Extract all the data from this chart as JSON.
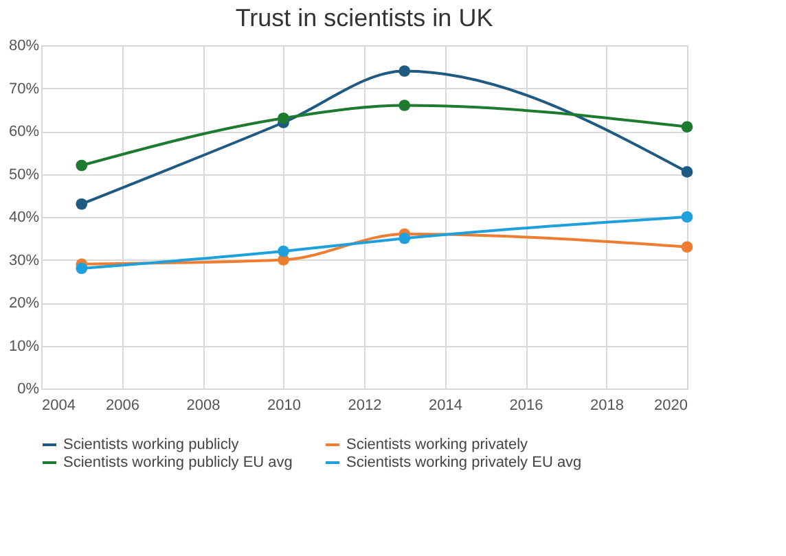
{
  "chart_data": {
    "type": "line",
    "title": "Trust in scientists in UK",
    "x": [
      2005,
      2010,
      2013,
      2020
    ],
    "series": [
      {
        "name": "Scientists working publicly",
        "color": "#1f5a82",
        "values": [
          43,
          62,
          74,
          50.5
        ]
      },
      {
        "name": "Scientists working privately",
        "color": "#ed7d31",
        "values": [
          29,
          30,
          36,
          33
        ]
      },
      {
        "name": "Scientists working publicly EU avg",
        "color": "#1e7a2e",
        "values": [
          52,
          63,
          66,
          61
        ]
      },
      {
        "name": "Scientists working privately EU avg",
        "color": "#1ea0dc",
        "values": [
          28,
          32,
          35,
          40
        ]
      }
    ],
    "xlim": [
      2004,
      2020
    ],
    "xticks": [
      2004,
      2006,
      2008,
      2010,
      2012,
      2014,
      2016,
      2018,
      2020
    ],
    "ylim": [
      0,
      80
    ],
    "yticks": [
      {
        "value": 0,
        "label": "0%"
      },
      {
        "value": 10,
        "label": "10%"
      },
      {
        "value": 20,
        "label": "20%"
      },
      {
        "value": 30,
        "label": "30%"
      },
      {
        "value": 40,
        "label": "40%"
      },
      {
        "value": 50,
        "label": "50%"
      },
      {
        "value": 60,
        "label": "60%"
      },
      {
        "value": 70,
        "label": "70%"
      },
      {
        "value": 80,
        "label": "80%"
      }
    ],
    "grid": true,
    "legend": "bottom",
    "marker": "circle",
    "line_style": "solid"
  }
}
